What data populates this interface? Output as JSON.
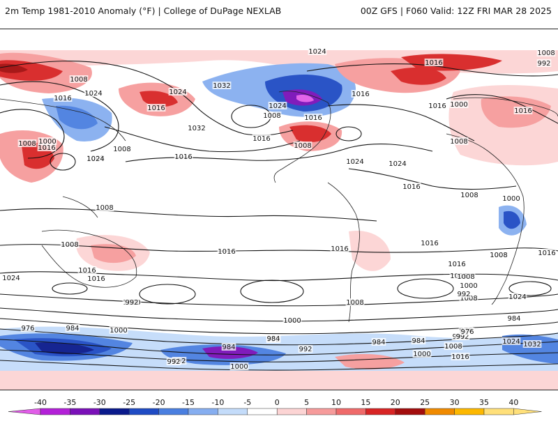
{
  "header": {
    "left_title": "2m Temp 1981-2010 Anomaly (°F) | College of DuPage NEXLAB",
    "right_title": "00Z GFS | F060 Valid: 12Z FRI MAR 28 2025"
  },
  "colorbar": {
    "ticks": [
      "-40",
      "-35",
      "-30",
      "-25",
      "-20",
      "-15",
      "-10",
      "-5",
      "0",
      "5",
      "10",
      "15",
      "20",
      "25",
      "30",
      "35",
      "40"
    ],
    "colors": [
      "#e15de8",
      "#b320d8",
      "#7a10b8",
      "#0a1a8c",
      "#1f4bc4",
      "#4a7fe0",
      "#86aef0",
      "#c4dcfa",
      "#ffffff",
      "#fcd4d4",
      "#f69b9b",
      "#ef6a6a",
      "#d82424",
      "#a30d0d",
      "#f08a00",
      "#fdb800",
      "#ffe07a"
    ]
  },
  "map": {
    "isobar_labels": [
      {
        "text": "1024"
      },
      {
        "text": "1008"
      },
      {
        "text": "992"
      },
      {
        "text": "1016"
      },
      {
        "text": "1008"
      },
      {
        "text": "1016"
      },
      {
        "text": "1024"
      },
      {
        "text": "1024"
      },
      {
        "text": "1016"
      },
      {
        "text": "1032"
      },
      {
        "text": "1016"
      },
      {
        "text": "1032"
      },
      {
        "text": "1024"
      },
      {
        "text": "1008"
      },
      {
        "text": "1016"
      },
      {
        "text": "1008"
      },
      {
        "text": "1016"
      },
      {
        "text": "1016"
      },
      {
        "text": "1008"
      },
      {
        "text": "1016"
      },
      {
        "text": "1000"
      },
      {
        "text": "1008"
      },
      {
        "text": "1008"
      },
      {
        "text": "1000"
      },
      {
        "text": "1024"
      },
      {
        "text": "1008"
      },
      {
        "text": "1016"
      },
      {
        "text": "1016"
      },
      {
        "text": "1008"
      },
      {
        "text": "1024"
      },
      {
        "text": "1024"
      },
      {
        "text": "1016"
      },
      {
        "text": "1008"
      },
      {
        "text": "1000"
      },
      {
        "text": "1008"
      },
      {
        "text": "1016"
      },
      {
        "text": "1008"
      },
      {
        "text": "1016"
      },
      {
        "text": "1016"
      },
      {
        "text": "1016"
      },
      {
        "text": "1016"
      },
      {
        "text": "1016"
      },
      {
        "text": "1016"
      },
      {
        "text": "1008"
      },
      {
        "text": "1024"
      },
      {
        "text": "1016"
      },
      {
        "text": "1008"
      },
      {
        "text": "1000"
      },
      {
        "text": "1008"
      },
      {
        "text": "1024"
      },
      {
        "text": "992"
      },
      {
        "text": "1008"
      },
      {
        "text": "1000"
      },
      {
        "text": "984"
      },
      {
        "text": "1000"
      },
      {
        "text": "992"
      },
      {
        "text": "976"
      },
      {
        "text": "984"
      },
      {
        "text": "1000"
      },
      {
        "text": "992"
      },
      {
        "text": "984"
      },
      {
        "text": "984"
      },
      {
        "text": "992"
      },
      {
        "text": "992"
      },
      {
        "text": "984"
      },
      {
        "text": "976"
      },
      {
        "text": "992"
      },
      {
        "text": "1008"
      },
      {
        "text": "1024"
      },
      {
        "text": "1032"
      },
      {
        "text": "1000"
      },
      {
        "text": "1016"
      },
      {
        "text": "1000"
      },
      {
        "text": "992"
      },
      {
        "text": "984"
      },
      {
        "text": "976"
      },
      {
        "text": "992"
      }
    ]
  }
}
